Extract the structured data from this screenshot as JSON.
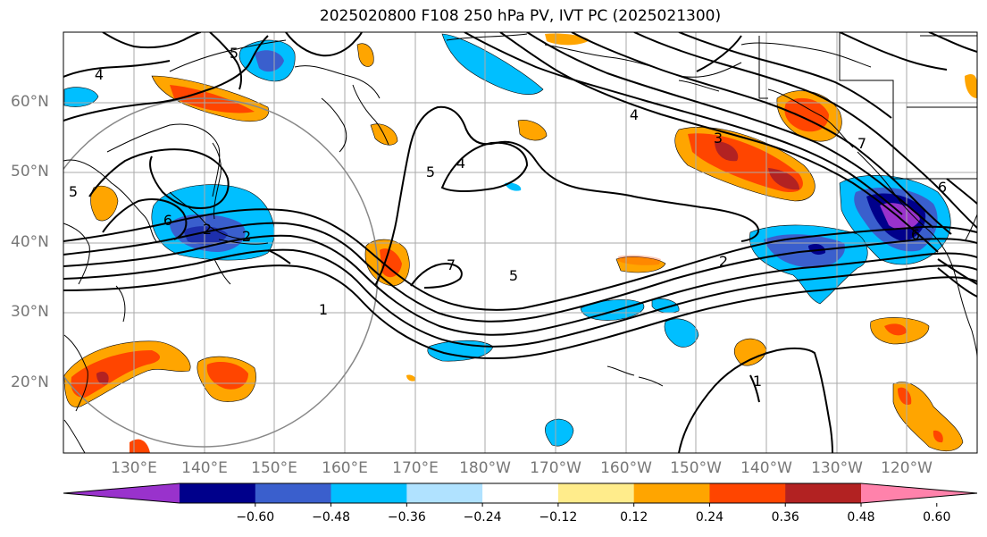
{
  "title": "2025020800 F108 250 hPa PV, IVT PC (2025021300)",
  "lat_labels": [
    "60°N",
    "50°N",
    "40°N",
    "30°N",
    "20°N"
  ],
  "lon_labels": [
    "130°E",
    "140°E",
    "150°E",
    "160°E",
    "170°E",
    "180°W",
    "170°W",
    "160°W",
    "150°W",
    "140°W",
    "130°W",
    "120°W"
  ],
  "contour_labels": [
    "4",
    "5",
    "6",
    "2",
    "2",
    "1",
    "5",
    "4",
    "5",
    "7",
    "5",
    "3",
    "4",
    "7",
    "2",
    "1",
    "6",
    "6"
  ],
  "colorbar": {
    "colors": [
      "#9932cc",
      "#00008b",
      "#3a5fcd",
      "#00bfff",
      "#b0e2ff",
      "#ffffff",
      "#ffec8b",
      "#ffa500",
      "#ff4500",
      "#b22222",
      "#ff82ab"
    ],
    "tick_labels": [
      "−0.60",
      "−0.48",
      "−0.36",
      "−0.24",
      "−0.12",
      "0.12",
      "0.24",
      "0.36",
      "0.48",
      "0.60"
    ]
  }
}
